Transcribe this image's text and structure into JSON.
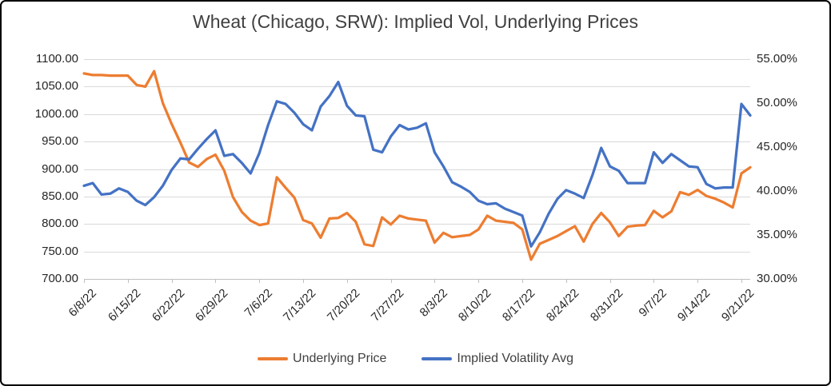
{
  "chart": {
    "legend": [
      {
        "label": "Underlying Price",
        "color": "#ED7D31"
      },
      {
        "label": "Implied Volatility Avg",
        "color": "#4472C4"
      }
    ]
  },
  "chart_data": {
    "type": "line",
    "title": "Wheat (Chicago, SRW): Implied Vol, Underlying Prices",
    "grid": "horizontal",
    "legend_position": "bottom",
    "x_tick_interval": 5,
    "categories": [
      "6/8/22",
      "6/9/22",
      "6/10/22",
      "6/13/22",
      "6/14/22",
      "6/15/22",
      "6/16/22",
      "6/17/22",
      "6/20/22",
      "6/21/22",
      "6/22/22",
      "6/23/22",
      "6/24/22",
      "6/27/22",
      "6/28/22",
      "6/29/22",
      "6/30/22",
      "7/1/22",
      "7/4/22",
      "7/5/22",
      "7/6/22",
      "7/7/22",
      "7/8/22",
      "7/11/22",
      "7/12/22",
      "7/13/22",
      "7/14/22",
      "7/15/22",
      "7/18/22",
      "7/19/22",
      "7/20/22",
      "7/21/22",
      "7/22/22",
      "7/25/22",
      "7/26/22",
      "7/27/22",
      "7/28/22",
      "7/29/22",
      "8/1/22",
      "8/2/22",
      "8/3/22",
      "8/4/22",
      "8/5/22",
      "8/8/22",
      "8/9/22",
      "8/10/22",
      "8/11/22",
      "8/12/22",
      "8/15/22",
      "8/16/22",
      "8/17/22",
      "8/18/22",
      "8/19/22",
      "8/22/22",
      "8/23/22",
      "8/24/22",
      "8/25/22",
      "8/26/22",
      "8/29/22",
      "8/30/22",
      "8/31/22",
      "9/1/22",
      "9/2/22",
      "9/5/22",
      "9/6/22",
      "9/7/22",
      "9/8/22",
      "9/9/22",
      "9/12/22",
      "9/13/22",
      "9/14/22",
      "9/15/22",
      "9/16/22",
      "9/19/22",
      "9/20/22",
      "9/21/22",
      "9/22/22"
    ],
    "series": [
      {
        "name": "Underlying Price",
        "axis": "left",
        "color": "#ED7D31",
        "values": [
          1074,
          1071,
          1071,
          1070,
          1070,
          1070,
          1053,
          1050,
          1078,
          1020,
          982,
          948,
          912,
          904,
          918,
          926,
          897,
          849,
          822,
          806,
          798,
          801,
          885,
          866,
          848,
          807,
          801,
          775,
          810,
          811,
          820,
          804,
          763,
          760,
          812,
          799,
          815,
          810,
          808,
          806,
          766,
          784,
          776,
          778,
          780,
          790,
          815,
          806,
          804,
          802,
          790,
          735,
          764,
          771,
          778,
          787,
          796,
          768,
          800,
          820,
          803,
          778,
          795,
          797,
          798,
          824,
          812,
          823,
          858,
          853,
          862,
          851,
          846,
          839,
          830,
          892,
          903
        ]
      },
      {
        "name": "Implied Volatility Avg",
        "axis": "right",
        "color": "#4472C4",
        "values": [
          40.6,
          40.9,
          39.6,
          39.7,
          40.3,
          39.9,
          38.9,
          38.4,
          39.3,
          40.6,
          42.4,
          43.7,
          43.6,
          44.8,
          45.9,
          46.9,
          44.0,
          44.2,
          43.2,
          42.0,
          44.3,
          47.5,
          50.2,
          49.9,
          48.9,
          47.6,
          46.9,
          49.6,
          50.8,
          52.4,
          49.7,
          48.6,
          48.5,
          44.7,
          44.4,
          46.2,
          47.5,
          47.0,
          47.2,
          47.7,
          44.4,
          42.8,
          41.0,
          40.5,
          39.9,
          38.9,
          38.5,
          38.6,
          38.0,
          37.6,
          37.2,
          33.7,
          35.3,
          37.4,
          39.1,
          40.1,
          39.7,
          39.2,
          41.8,
          44.9,
          42.8,
          42.3,
          40.9,
          40.9,
          40.9,
          44.4,
          43.2,
          44.2,
          43.5,
          42.8,
          42.7,
          40.8,
          40.3,
          40.4,
          40.4,
          49.9,
          48.6
        ]
      }
    ],
    "left_axis": {
      "min": 700,
      "max": 1100,
      "step": 50,
      "labels": [
        "1100.00",
        "1050.00",
        "1000.00",
        "950.00",
        "900.00",
        "850.00",
        "800.00",
        "750.00",
        "700.00"
      ]
    },
    "right_axis": {
      "min": 30,
      "max": 55,
      "step": 5,
      "labels": [
        "55.00%",
        "50.00%",
        "45.00%",
        "40.00%",
        "35.00%",
        "30.00%"
      ]
    }
  }
}
